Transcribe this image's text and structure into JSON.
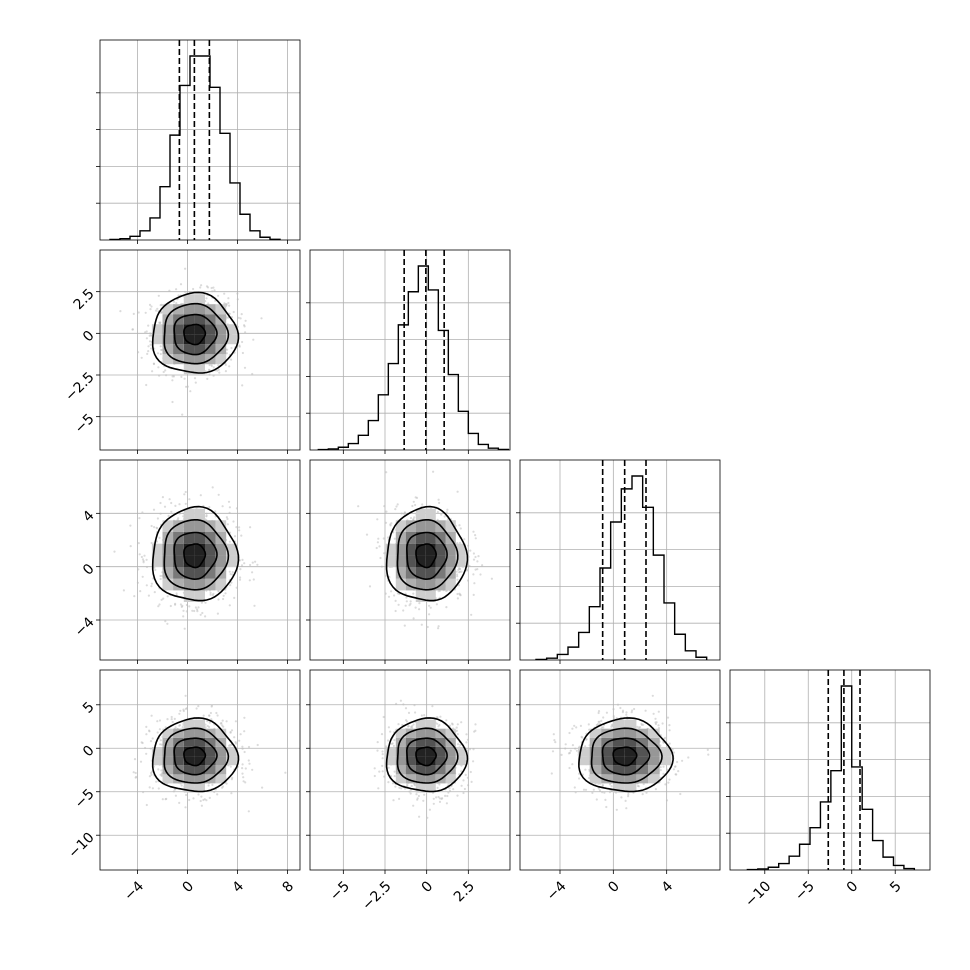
{
  "chart_data": [
    {
      "type": "histogram",
      "panel": "p0-0",
      "x_range": [
        -7,
        9
      ],
      "y_range": [
        0,
        1
      ],
      "x_ticks": [
        -4,
        0,
        4,
        8
      ],
      "bins_x": [
        -6.2,
        -5.4,
        -4.6,
        -3.8,
        -3.0,
        -2.2,
        -1.4,
        -0.6,
        0.2,
        1.0,
        1.8,
        2.6,
        3.4,
        4.2,
        5.0,
        5.8,
        6.6
      ],
      "values": [
        0.003,
        0.007,
        0.02,
        0.05,
        0.12,
        0.29,
        0.57,
        0.84,
        1.0,
        1.0,
        0.83,
        0.58,
        0.31,
        0.14,
        0.05,
        0.015,
        0.004
      ],
      "quantiles": [
        -0.65,
        0.55,
        1.75
      ],
      "grid": true
    },
    {
      "type": "histogram",
      "panel": "p1-1",
      "x_range": [
        -7,
        5
      ],
      "y_range": [
        0,
        1
      ],
      "x_ticks": [
        -5.0,
        -2.5,
        0.0,
        2.5
      ],
      "bins_x": [
        -6.5,
        -5.9,
        -5.3,
        -4.7,
        -4.1,
        -3.5,
        -2.9,
        -2.3,
        -1.7,
        -1.1,
        -0.5,
        0.1,
        0.7,
        1.3,
        1.9,
        2.5,
        3.1,
        3.7,
        4.3
      ],
      "values": [
        0.002,
        0.006,
        0.015,
        0.035,
        0.08,
        0.16,
        0.3,
        0.47,
        0.68,
        0.86,
        1.0,
        0.87,
        0.65,
        0.41,
        0.21,
        0.09,
        0.03,
        0.01,
        0.003
      ],
      "quantiles": [
        -1.35,
        -0.05,
        1.05
      ],
      "grid": true
    },
    {
      "type": "histogram",
      "panel": "p2-2",
      "x_range": [
        -7,
        8
      ],
      "y_range": [
        0,
        1
      ],
      "x_ticks": [
        -4,
        0,
        4
      ],
      "bins_x": [
        -5.8,
        -5.0,
        -4.2,
        -3.4,
        -2.6,
        -1.8,
        -1.0,
        -0.2,
        0.6,
        1.4,
        2.2,
        3.0,
        3.8,
        4.6,
        5.4,
        6.2
      ],
      "values": [
        0.003,
        0.01,
        0.03,
        0.07,
        0.15,
        0.29,
        0.5,
        0.75,
        0.93,
        1.0,
        0.83,
        0.57,
        0.31,
        0.14,
        0.05,
        0.015
      ],
      "quantiles": [
        -0.8,
        0.85,
        2.45
      ],
      "grid": true
    },
    {
      "type": "histogram",
      "panel": "p3-3",
      "x_range": [
        -14,
        9
      ],
      "y_range": [
        0,
        1
      ],
      "x_ticks": [
        -10,
        -5,
        0,
        5
      ],
      "bins_x": [
        -12.0,
        -10.8,
        -9.6,
        -8.4,
        -7.2,
        -6.0,
        -4.8,
        -3.6,
        -2.4,
        -1.2,
        0.0,
        1.2,
        2.4,
        3.6,
        4.8,
        6.0
      ],
      "values": [
        0.002,
        0.006,
        0.015,
        0.035,
        0.075,
        0.14,
        0.23,
        0.37,
        0.54,
        1.0,
        0.56,
        0.33,
        0.16,
        0.07,
        0.025,
        0.008
      ],
      "quantiles": [
        -2.7,
        -0.9,
        0.95
      ],
      "grid": true
    },
    {
      "type": "scatter",
      "panel": "p1-0",
      "x_range": [
        -7,
        9
      ],
      "y_range": [
        -7,
        5
      ],
      "center": [
        0.55,
        -0.05
      ],
      "sigma": [
        1.7,
        1.2
      ],
      "x_ticks": [
        -4,
        0,
        4,
        8
      ],
      "y_ticks": [
        -5.0,
        -2.5,
        0.0,
        2.5
      ],
      "grid": true
    },
    {
      "type": "scatter",
      "panel": "p2-0",
      "x_range": [
        -7,
        9
      ],
      "y_range": [
        -7,
        8
      ],
      "center": [
        0.55,
        0.85
      ],
      "sigma": [
        1.7,
        1.75
      ],
      "x_ticks": [
        -4,
        0,
        4,
        8
      ],
      "y_ticks": [
        -4,
        0,
        4
      ],
      "grid": true
    },
    {
      "type": "scatter",
      "panel": "p2-1",
      "x_range": [
        -7,
        5
      ],
      "y_range": [
        -7,
        8
      ],
      "center": [
        -0.05,
        0.85
      ],
      "sigma": [
        1.2,
        1.75
      ],
      "x_ticks": [
        -5.0,
        -2.5,
        0.0,
        2.5
      ],
      "y_ticks": [
        -4,
        0,
        4
      ],
      "grid": true
    },
    {
      "type": "scatter",
      "panel": "p3-0",
      "x_range": [
        -7,
        9
      ],
      "y_range": [
        -14,
        9
      ],
      "center": [
        0.55,
        -0.9
      ],
      "sigma": [
        1.7,
        2.1
      ],
      "x_ticks": [
        -4,
        0,
        4,
        8
      ],
      "y_ticks": [
        -10,
        -5,
        0,
        5
      ],
      "grid": true
    },
    {
      "type": "scatter",
      "panel": "p3-1",
      "x_range": [
        -7,
        5
      ],
      "y_range": [
        -14,
        9
      ],
      "center": [
        -0.05,
        -0.9
      ],
      "sigma": [
        1.2,
        2.1
      ],
      "x_ticks": [
        -5.0,
        -2.5,
        0.0,
        2.5
      ],
      "y_ticks": [
        -10,
        -5,
        0,
        5
      ],
      "grid": true
    },
    {
      "type": "scatter",
      "panel": "p3-2",
      "x_range": [
        -7,
        8
      ],
      "y_range": [
        -14,
        9
      ],
      "center": [
        0.85,
        -0.9
      ],
      "sigma": [
        1.75,
        2.1
      ],
      "x_ticks": [
        -4,
        0,
        4
      ],
      "y_ticks": [
        -10,
        -5,
        0,
        5
      ],
      "grid": true
    }
  ]
}
